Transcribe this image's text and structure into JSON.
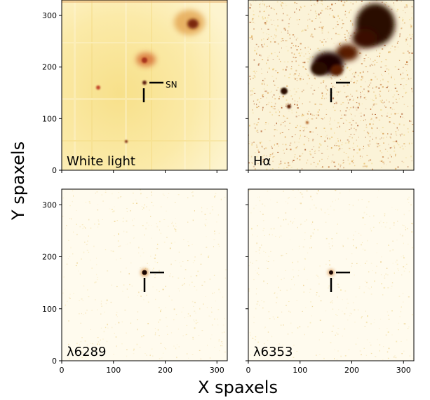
{
  "figure": {
    "ylabel": "Y spaxels",
    "xlabel": "X spaxels",
    "x_ticks": [
      "0",
      "100",
      "200",
      "300"
    ],
    "y_ticks": [
      "0",
      "100",
      "200",
      "300"
    ],
    "x_range": [
      0,
      320
    ],
    "y_range": [
      0,
      330
    ],
    "colors": {
      "background": "#fff9e6",
      "dark": "#1a0500",
      "mid": "#b33a10",
      "light": "#f6d27a",
      "marker": "#000000"
    }
  },
  "panels": [
    {
      "label": "White light",
      "sn_label": "SN",
      "sn_position": [
        160,
        170
      ],
      "style": "broadband"
    },
    {
      "label": "Hα",
      "sn_position": [
        160,
        170
      ],
      "style": "emission"
    },
    {
      "label": "λ6289",
      "sn_position": [
        160,
        170
      ],
      "style": "point"
    },
    {
      "label": "λ6353",
      "sn_position": [
        160,
        170
      ],
      "style": "point"
    }
  ]
}
